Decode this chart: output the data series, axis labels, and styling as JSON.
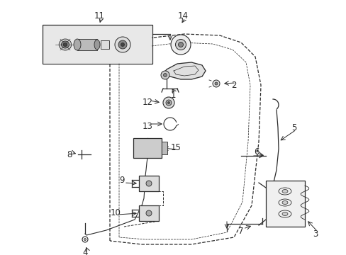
{
  "background_color": "#ffffff",
  "line_color": "#2a2a2a",
  "fig_width": 4.89,
  "fig_height": 3.6,
  "dpi": 100
}
